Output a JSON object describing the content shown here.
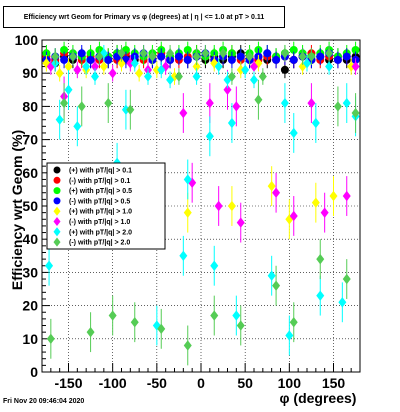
{
  "chart_data": {
    "type": "scatter",
    "title": "Efficiency wrt Geom for Primary vs φ (degrees) at | η | <= 1.0 at pT > 0.11",
    "xlabel": "φ (degrees)",
    "ylabel": "Efficiency wrt Geom (%)",
    "xlim": [
      -180,
      180
    ],
    "ylim": [
      0,
      100
    ],
    "xticks": [
      -150,
      -100,
      -50,
      0,
      50,
      100,
      150
    ],
    "yticks": [
      0,
      10,
      20,
      30,
      40,
      50,
      60,
      70,
      80,
      90,
      100
    ],
    "grid": true,
    "legend_position": "left-middle",
    "series": [
      {
        "name": "(+) with pT/|q| > 0.1",
        "color": "#000000",
        "marker": "circle",
        "points": [
          [
            -175,
            94
          ],
          [
            -165,
            93
          ],
          [
            -155,
            95
          ],
          [
            -145,
            94
          ],
          [
            -135,
            95
          ],
          [
            -125,
            94
          ],
          [
            -115,
            95
          ],
          [
            -105,
            94
          ],
          [
            -95,
            96
          ],
          [
            -85,
            95
          ],
          [
            -75,
            94
          ],
          [
            -65,
            95
          ],
          [
            -55,
            94
          ],
          [
            -45,
            95
          ],
          [
            -35,
            94
          ],
          [
            -25,
            95
          ],
          [
            -15,
            94
          ],
          [
            -5,
            95
          ],
          [
            5,
            94
          ],
          [
            15,
            95
          ],
          [
            25,
            94
          ],
          [
            35,
            95
          ],
          [
            45,
            96
          ],
          [
            55,
            94
          ],
          [
            65,
            95
          ],
          [
            75,
            94
          ],
          [
            85,
            95
          ],
          [
            95,
            91
          ],
          [
            105,
            94
          ],
          [
            115,
            95
          ],
          [
            125,
            94
          ],
          [
            135,
            95
          ],
          [
            145,
            94
          ],
          [
            155,
            95
          ],
          [
            165,
            94
          ],
          [
            175,
            95
          ]
        ]
      },
      {
        "name": "(-) with pT/|q| > 0.1",
        "color": "#ff0000",
        "marker": "circle",
        "points": [
          [
            -175,
            95
          ],
          [
            -165,
            94
          ],
          [
            -155,
            96
          ],
          [
            -145,
            95
          ],
          [
            -135,
            94
          ],
          [
            -125,
            95
          ],
          [
            -115,
            94
          ],
          [
            -105,
            95
          ],
          [
            -95,
            94
          ],
          [
            -85,
            96
          ],
          [
            -75,
            95
          ],
          [
            -65,
            94
          ],
          [
            -55,
            95
          ],
          [
            -45,
            96
          ],
          [
            -35,
            95
          ],
          [
            -25,
            94
          ],
          [
            -15,
            95
          ],
          [
            -5,
            96
          ],
          [
            5,
            95
          ],
          [
            15,
            94
          ],
          [
            25,
            95
          ],
          [
            35,
            96
          ],
          [
            45,
            94
          ],
          [
            55,
            95
          ],
          [
            65,
            94
          ],
          [
            75,
            95
          ],
          [
            85,
            94
          ],
          [
            95,
            95
          ],
          [
            105,
            94
          ],
          [
            115,
            95
          ],
          [
            125,
            96
          ],
          [
            135,
            94
          ],
          [
            145,
            95
          ],
          [
            155,
            94
          ],
          [
            165,
            95
          ],
          [
            175,
            94
          ]
        ]
      },
      {
        "name": "(+) with pT/|q| > 0.5",
        "color": "#00ff00",
        "marker": "circle",
        "points": [
          [
            -175,
            96
          ],
          [
            -165,
            95
          ],
          [
            -155,
            97
          ],
          [
            -145,
            96
          ],
          [
            -135,
            95
          ],
          [
            -125,
            96
          ],
          [
            -115,
            97
          ],
          [
            -105,
            95
          ],
          [
            -95,
            96
          ],
          [
            -85,
            97
          ],
          [
            -75,
            96
          ],
          [
            -65,
            95
          ],
          [
            -55,
            96
          ],
          [
            -45,
            97
          ],
          [
            -35,
            95
          ],
          [
            -25,
            96
          ],
          [
            -15,
            97
          ],
          [
            -5,
            96
          ],
          [
            5,
            95
          ],
          [
            15,
            96
          ],
          [
            25,
            97
          ],
          [
            35,
            96
          ],
          [
            45,
            95
          ],
          [
            55,
            96
          ],
          [
            65,
            97
          ],
          [
            75,
            96
          ],
          [
            85,
            95
          ],
          [
            95,
            96
          ],
          [
            105,
            97
          ],
          [
            115,
            96
          ],
          [
            125,
            95
          ],
          [
            135,
            96
          ],
          [
            145,
            97
          ],
          [
            155,
            95
          ],
          [
            165,
            96
          ],
          [
            175,
            97
          ]
        ]
      },
      {
        "name": "(-) with pT/|q| > 0.5",
        "color": "#0000ff",
        "marker": "circle",
        "points": [
          [
            -175,
            94
          ],
          [
            -165,
            95
          ],
          [
            -155,
            94
          ],
          [
            -145,
            95
          ],
          [
            -135,
            96
          ],
          [
            -125,
            94
          ],
          [
            -115,
            95
          ],
          [
            -105,
            94
          ],
          [
            -95,
            95
          ],
          [
            -85,
            94
          ],
          [
            -75,
            95
          ],
          [
            -65,
            96
          ],
          [
            -55,
            94
          ],
          [
            -45,
            95
          ],
          [
            -35,
            94
          ],
          [
            -25,
            95
          ],
          [
            -15,
            94
          ],
          [
            -5,
            95
          ],
          [
            5,
            96
          ],
          [
            15,
            94
          ],
          [
            25,
            95
          ],
          [
            35,
            94
          ],
          [
            45,
            95
          ],
          [
            55,
            94
          ],
          [
            65,
            95
          ],
          [
            75,
            96
          ],
          [
            85,
            94
          ],
          [
            95,
            95
          ],
          [
            105,
            94
          ],
          [
            115,
            95
          ],
          [
            125,
            94
          ],
          [
            135,
            95
          ],
          [
            145,
            96
          ],
          [
            155,
            94
          ],
          [
            165,
            95
          ],
          [
            175,
            94
          ]
        ]
      },
      {
        "name": "(+) with pT/|q| > 1.0",
        "color": "#ffff00",
        "marker": "diamond",
        "points": [
          [
            -175,
            93
          ],
          [
            -160,
            90
          ],
          [
            -150,
            92
          ],
          [
            -130,
            91
          ],
          [
            -110,
            92
          ],
          [
            -90,
            93
          ],
          [
            -70,
            90
          ],
          [
            -50,
            91
          ],
          [
            -30,
            89
          ],
          [
            -15,
            48
          ],
          [
            -5,
            92
          ],
          [
            15,
            93
          ],
          [
            35,
            50
          ],
          [
            45,
            91
          ],
          [
            65,
            93
          ],
          [
            80,
            56
          ],
          [
            100,
            46
          ],
          [
            115,
            92
          ],
          [
            130,
            51
          ],
          [
            150,
            53
          ],
          [
            170,
            92
          ]
        ]
      },
      {
        "name": "(-) with pT/|q| > 1.0",
        "color": "#ff00ff",
        "marker": "diamond",
        "points": [
          [
            -170,
            92
          ],
          [
            -155,
            83
          ],
          [
            -140,
            91
          ],
          [
            -120,
            92
          ],
          [
            -100,
            90
          ],
          [
            -80,
            93
          ],
          [
            -60,
            91
          ],
          [
            -40,
            92
          ],
          [
            -20,
            78
          ],
          [
            -10,
            57
          ],
          [
            10,
            81
          ],
          [
            20,
            50
          ],
          [
            30,
            85
          ],
          [
            40,
            80
          ],
          [
            45,
            45
          ],
          [
            60,
            92
          ],
          [
            85,
            54
          ],
          [
            105,
            47
          ],
          [
            125,
            81
          ],
          [
            140,
            48
          ],
          [
            165,
            53
          ],
          [
            175,
            92
          ]
        ]
      },
      {
        "name": "(+) with pT/|q| > 2.0",
        "color": "#00ffff",
        "marker": "diamond",
        "points": [
          [
            -172,
            32
          ],
          [
            -165,
            93
          ],
          [
            -160,
            76
          ],
          [
            -150,
            85
          ],
          [
            -140,
            74
          ],
          [
            -130,
            92
          ],
          [
            -120,
            89
          ],
          [
            -110,
            96
          ],
          [
            -95,
            63
          ],
          [
            -85,
            79
          ],
          [
            -75,
            93
          ],
          [
            -60,
            89
          ],
          [
            -50,
            14
          ],
          [
            -45,
            91
          ],
          [
            -35,
            88
          ],
          [
            -20,
            35
          ],
          [
            -15,
            58
          ],
          [
            -5,
            89
          ],
          [
            10,
            71
          ],
          [
            15,
            32
          ],
          [
            20,
            92
          ],
          [
            30,
            88
          ],
          [
            35,
            75
          ],
          [
            40,
            17
          ],
          [
            50,
            91
          ],
          [
            60,
            88
          ],
          [
            80,
            29
          ],
          [
            95,
            81
          ],
          [
            100,
            11
          ],
          [
            105,
            72
          ],
          [
            120,
            93
          ],
          [
            130,
            75
          ],
          [
            135,
            23
          ],
          [
            145,
            92
          ],
          [
            160,
            21
          ],
          [
            165,
            81
          ],
          [
            175,
            77
          ]
        ]
      },
      {
        "name": "(-) with pT/|q| > 2.0",
        "color": "#55cc55",
        "marker": "diamond",
        "points": [
          [
            -170,
            10
          ],
          [
            -165,
            95
          ],
          [
            -155,
            81
          ],
          [
            -145,
            95
          ],
          [
            -135,
            80
          ],
          [
            -125,
            12
          ],
          [
            -115,
            95
          ],
          [
            -105,
            81
          ],
          [
            -100,
            17
          ],
          [
            -90,
            96
          ],
          [
            -80,
            79
          ],
          [
            -75,
            15
          ],
          [
            -65,
            96
          ],
          [
            -55,
            95
          ],
          [
            -45,
            13
          ],
          [
            -35,
            96
          ],
          [
            -25,
            89
          ],
          [
            -15,
            8
          ],
          [
            -5,
            95
          ],
          [
            5,
            96
          ],
          [
            15,
            17
          ],
          [
            25,
            96
          ],
          [
            35,
            89
          ],
          [
            45,
            14
          ],
          [
            55,
            95
          ],
          [
            65,
            82
          ],
          [
            70,
            89
          ],
          [
            85,
            26
          ],
          [
            95,
            96
          ],
          [
            105,
            15
          ],
          [
            115,
            95
          ],
          [
            125,
            95
          ],
          [
            135,
            34
          ],
          [
            145,
            96
          ],
          [
            155,
            80
          ],
          [
            165,
            28
          ],
          [
            175,
            78
          ]
        ]
      }
    ]
  },
  "footer": {
    "timestamp": "Fri Nov 20 09:46:04 2020"
  }
}
